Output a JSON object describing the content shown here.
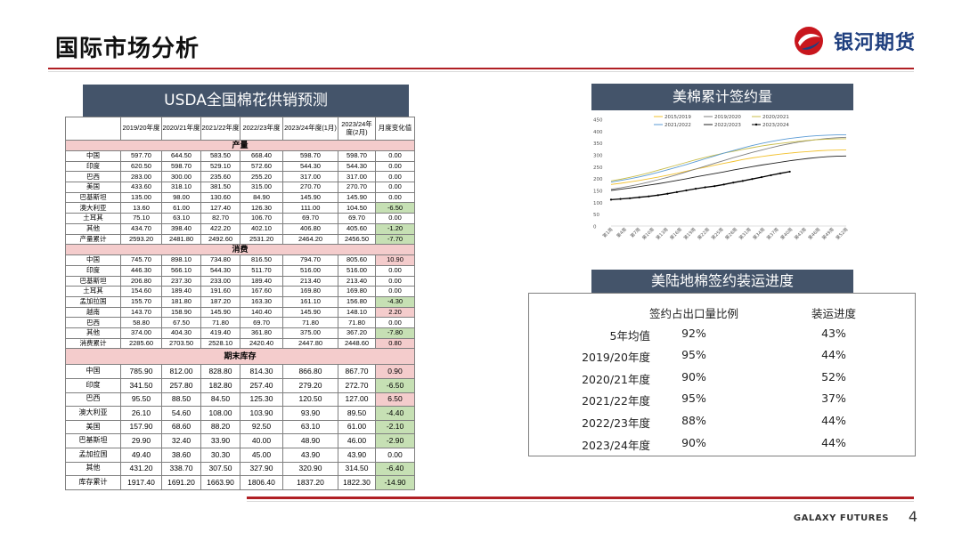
{
  "page": {
    "title": "国际市场分析",
    "brand": "银河期货",
    "footer_brand": "GALAXY FUTURES",
    "page_number": "4"
  },
  "usda": {
    "title": "USDA全国棉花供销预测",
    "columns": [
      "",
      "2019/20年度",
      "2020/21年度",
      "2021/22年度",
      "2022/23年度",
      "2023/24年度(1月)",
      "2023/24年度(2月)",
      "月度变化值"
    ],
    "sections": [
      {
        "name": "产量",
        "rows": [
          [
            "中国",
            "597.70",
            "644.50",
            "583.50",
            "668.40",
            "598.70",
            "598.70",
            "0.00"
          ],
          [
            "印度",
            "620.50",
            "598.70",
            "529.10",
            "572.60",
            "544.30",
            "544.30",
            "0.00"
          ],
          [
            "巴西",
            "283.00",
            "300.00",
            "235.60",
            "255.20",
            "317.00",
            "317.00",
            "0.00"
          ],
          [
            "美国",
            "433.60",
            "318.10",
            "381.50",
            "315.00",
            "270.70",
            "270.70",
            "0.00"
          ],
          [
            "巴基斯坦",
            "135.00",
            "98.00",
            "130.60",
            "84.90",
            "145.90",
            "145.90",
            "0.00"
          ],
          [
            "澳大利亚",
            "13.60",
            "61.00",
            "127.40",
            "126.30",
            "111.00",
            "104.50",
            "-6.50"
          ],
          [
            "土耳其",
            "75.10",
            "63.10",
            "82.70",
            "106.70",
            "69.70",
            "69.70",
            "0.00"
          ],
          [
            "其他",
            "434.70",
            "398.40",
            "422.20",
            "402.10",
            "406.80",
            "405.60",
            "-1.20"
          ],
          [
            "产量累计",
            "2593.20",
            "2481.80",
            "2492.60",
            "2531.20",
            "2464.20",
            "2456.50",
            "-7.70"
          ]
        ]
      },
      {
        "name": "消费",
        "rows": [
          [
            "中国",
            "745.70",
            "898.10",
            "734.80",
            "816.50",
            "794.70",
            "805.60",
            "10.90"
          ],
          [
            "印度",
            "446.30",
            "566.10",
            "544.30",
            "511.70",
            "516.00",
            "516.00",
            "0.00"
          ],
          [
            "巴基斯坦",
            "206.80",
            "237.30",
            "233.00",
            "189.40",
            "213.40",
            "213.40",
            "0.00"
          ],
          [
            "土耳其",
            "154.60",
            "189.40",
            "191.60",
            "167.60",
            "169.80",
            "169.80",
            "0.00"
          ],
          [
            "孟加拉国",
            "155.70",
            "181.80",
            "187.20",
            "163.30",
            "161.10",
            "156.80",
            "-4.30"
          ],
          [
            "越南",
            "143.70",
            "158.90",
            "145.90",
            "140.40",
            "145.90",
            "148.10",
            "2.20"
          ],
          [
            "巴西",
            "58.80",
            "67.50",
            "71.80",
            "69.70",
            "71.80",
            "71.80",
            "0.00"
          ],
          [
            "其他",
            "374.00",
            "404.30",
            "419.40",
            "361.80",
            "375.00",
            "367.20",
            "-7.80"
          ],
          [
            "消费累计",
            "2285.60",
            "2703.50",
            "2528.10",
            "2420.40",
            "2447.80",
            "2448.60",
            "0.80"
          ]
        ]
      },
      {
        "name": "期末库存",
        "rows": [
          [
            "中国",
            "785.90",
            "812.00",
            "828.80",
            "814.30",
            "866.80",
            "867.70",
            "0.90"
          ],
          [
            "印度",
            "341.50",
            "257.80",
            "182.80",
            "257.40",
            "279.20",
            "272.70",
            "-6.50"
          ],
          [
            "巴西",
            "95.50",
            "88.50",
            "84.50",
            "125.30",
            "120.50",
            "127.00",
            "6.50"
          ],
          [
            "澳大利亚",
            "26.10",
            "54.60",
            "108.00",
            "103.90",
            "93.90",
            "89.50",
            "-4.40"
          ],
          [
            "美国",
            "157.90",
            "68.60",
            "88.20",
            "92.50",
            "63.10",
            "61.00",
            "-2.10"
          ],
          [
            "巴基斯坦",
            "29.90",
            "32.40",
            "33.90",
            "40.00",
            "48.90",
            "46.00",
            "-2.90"
          ],
          [
            "孟加拉国",
            "49.40",
            "38.60",
            "30.30",
            "45.00",
            "43.90",
            "43.90",
            "0.00"
          ],
          [
            "其他",
            "431.20",
            "338.70",
            "307.50",
            "327.90",
            "320.90",
            "314.50",
            "-6.40"
          ],
          [
            "库存累计",
            "1917.40",
            "1691.20",
            "1663.90",
            "1806.40",
            "1837.20",
            "1822.30",
            "-14.90"
          ]
        ]
      }
    ]
  },
  "chart_data": {
    "type": "line",
    "title": "美棉累计签约量",
    "ylim": [
      0,
      450
    ],
    "yticks": [
      "0",
      "50",
      "100",
      "150",
      "200",
      "250",
      "300",
      "350",
      "400",
      "450"
    ],
    "xticks": [
      "第1周",
      "第4周",
      "第7周",
      "第10周",
      "第13周",
      "第16周",
      "第19周",
      "第22周",
      "第25周",
      "第28周",
      "第31周",
      "第34周",
      "第37周",
      "第40周",
      "第43周",
      "第46周",
      "第49周",
      "第52周"
    ],
    "legend_position": "top",
    "series": [
      {
        "name": "2015/2019",
        "color": "#f2c12e",
        "values": [
          175,
          180,
          186,
          192,
          199,
          206,
          214,
          222,
          231,
          240,
          248,
          256,
          264,
          272,
          280,
          287,
          293,
          298,
          303,
          307,
          311,
          314,
          317,
          319,
          320,
          321
        ]
      },
      {
        "name": "2019/2020",
        "color": "#7f7f7f",
        "values": [
          155,
          161,
          168,
          176,
          185,
          195,
          205,
          216,
          228,
          240,
          252,
          264,
          276,
          288,
          299,
          310,
          320,
          330,
          339,
          347,
          354,
          360,
          365,
          369,
          372,
          374
        ]
      },
      {
        "name": "2020/2021",
        "color": "#c9bd4a",
        "values": [
          190,
          197,
          205,
          214,
          224,
          235,
          246,
          257,
          268,
          279,
          289,
          298,
          307,
          315,
          323,
          330,
          337,
          343,
          348,
          353,
          357,
          361,
          364,
          366,
          367,
          368
        ]
      },
      {
        "name": "2021/2022",
        "color": "#5b9bd5",
        "values": [
          185,
          192,
          199,
          207,
          216,
          226,
          237,
          248,
          259,
          271,
          283,
          295,
          307,
          318,
          329,
          339,
          348,
          356,
          363,
          369,
          374,
          378,
          381,
          383,
          384,
          384
        ]
      },
      {
        "name": "2022/2023",
        "color": "#222222",
        "values": [
          150,
          155,
          160,
          166,
          172,
          178,
          185,
          192,
          199,
          207,
          214,
          221,
          228,
          236,
          243,
          250,
          257,
          263,
          269,
          275,
          280,
          285,
          289,
          292,
          294,
          295
        ]
      },
      {
        "name": "2023/2024",
        "color": "#000000",
        "dotted": true,
        "values": [
          111,
          114,
          117,
          121,
          125,
          130,
          136,
          143,
          150,
          157,
          163,
          168,
          175,
          183,
          190,
          198,
          206,
          214,
          222,
          229
        ]
      }
    ]
  },
  "shipping": {
    "title": "美陆地棉签约装运进度",
    "headers": [
      "",
      "签约占出口量比例",
      "装运进度"
    ],
    "rows": [
      [
        "5年均值",
        "92%",
        "43%"
      ],
      [
        "2019/20年度",
        "95%",
        "44%"
      ],
      [
        "2020/21年度",
        "90%",
        "52%"
      ],
      [
        "2021/22年度",
        "95%",
        "37%"
      ],
      [
        "2022/23年度",
        "88%",
        "44%"
      ],
      [
        "2023/24年度",
        "90%",
        "44%"
      ]
    ]
  }
}
